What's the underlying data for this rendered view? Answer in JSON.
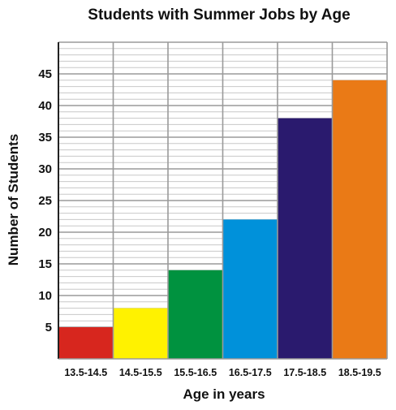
{
  "chart_data": {
    "type": "bar",
    "title": "Students with Summer Jobs by Age",
    "xlabel": "Age in years",
    "ylabel": "Number of Students",
    "categories": [
      "13.5-14.5",
      "14.5-15.5",
      "15.5-16.5",
      "16.5-17.5",
      "17.5-18.5",
      "18.5-19.5"
    ],
    "values": [
      5,
      8,
      14,
      22,
      38,
      44
    ],
    "colors": [
      "#d7261e",
      "#fff200",
      "#00923f",
      "#0091da",
      "#2a1a6e",
      "#ea7a16"
    ],
    "ylim": [
      0,
      50
    ],
    "yticks": [
      5,
      10,
      15,
      20,
      25,
      30,
      35,
      40,
      45
    ],
    "grid": true
  }
}
